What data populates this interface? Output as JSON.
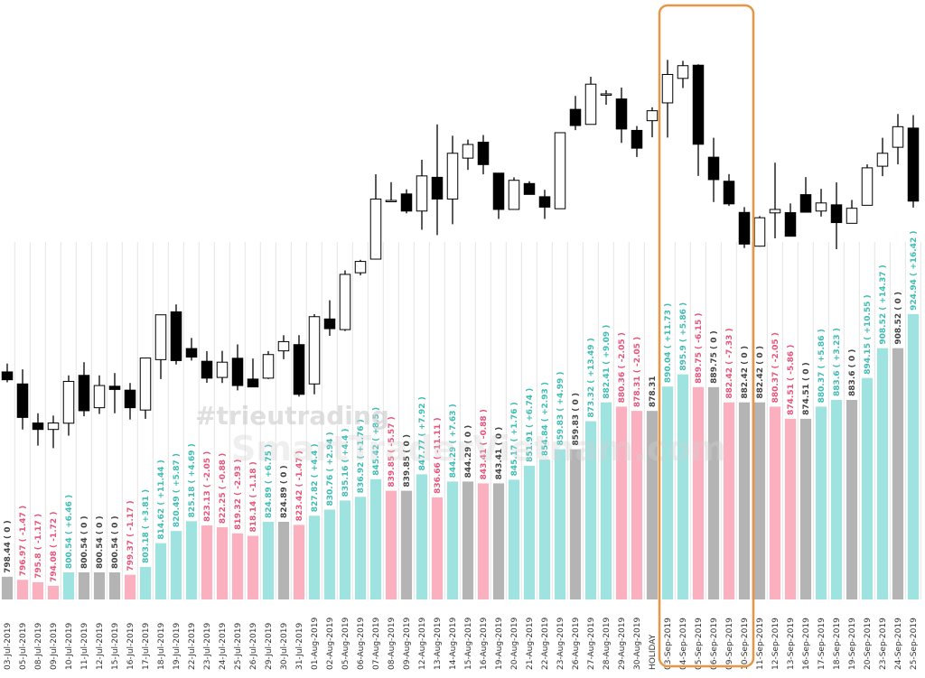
{
  "watermark": {
    "handle": "#trieutrading",
    "site": "SmartTraderVietnam.com"
  },
  "colors": {
    "up": "#9ee3e0",
    "down": "#fbb0c0",
    "flat": "#b4b4b4",
    "up_text": "#3fbdb4",
    "down_text": "#e8557a",
    "flat_text": "#444444",
    "highlight": "#e69645",
    "candle": "#000000"
  },
  "chart_data": [
    {
      "type": "bar",
      "title": "",
      "categories": [
        "03-Jul-2019",
        "05-Jul-2019",
        "08-Jul-2019",
        "09-Jul-2019",
        "10-Jul-2019",
        "11-Jul-2019",
        "12-Jul-2019",
        "15-Jul-2019",
        "16-Jul-2019",
        "17-Jul-2019",
        "18-Jul-2019",
        "19-Jul-2019",
        "22-Jul-2019",
        "23-Jul-2019",
        "24-Jul-2019",
        "25-Jul-2019",
        "26-Jul-2019",
        "29-Jul-2019",
        "30-Jul-2019",
        "31-Jul-2019",
        "01-Aug-2019",
        "02-Aug-2019",
        "05-Aug-2019",
        "06-Aug-2019",
        "07-Aug-2019",
        "08-Aug-2019",
        "09-Aug-2019",
        "12-Aug-2019",
        "13-Aug-2019",
        "14-Aug-2019",
        "15-Aug-2019",
        "16-Aug-2019",
        "19-Aug-2019",
        "20-Aug-2019",
        "21-Aug-2019",
        "22-Aug-2019",
        "23-Aug-2019",
        "26-Aug-2019",
        "27-Aug-2019",
        "28-Aug-2019",
        "29-Aug-2019",
        "30-Aug-2019",
        "HOLIDAY",
        "03-Sep-2019",
        "04-Sep-2019",
        "05-Sep-2019",
        "06-Sep-2019",
        "09-Sep-2019",
        "10-Sep-2019",
        "11-Sep-2019",
        "12-Sep-2019",
        "13-Sep-2019",
        "16-Sep-2019",
        "17-Sep-2019",
        "18-Sep-2019",
        "19-Sep-2019",
        "20-Sep-2019",
        "23-Sep-2019",
        "24-Sep-2019",
        "25-Sep-2019"
      ],
      "series": [
        {
          "values": [
            798.44,
            796.97,
            795.8,
            794.08,
            800.54,
            800.54,
            800.54,
            800.54,
            799.37,
            803.18,
            814.62,
            820.49,
            825.18,
            823.13,
            822.25,
            819.32,
            818.14,
            824.89,
            824.89,
            823.42,
            827.82,
            830.76,
            835.16,
            836.92,
            845.42,
            839.85,
            839.85,
            847.77,
            836.66,
            844.29,
            844.29,
            843.41,
            843.41,
            845.17,
            851.91,
            854.84,
            859.83,
            859.83,
            873.32,
            882.41,
            880.36,
            878.31,
            878.31,
            890.04,
            895.9,
            889.75,
            889.75,
            882.42,
            882.42,
            882.42,
            880.37,
            874.51,
            874.51,
            880.37,
            883.6,
            883.6,
            894.15,
            908.52,
            908.52,
            924.94
          ],
          "labels": [
            "798.44",
            "796.97",
            "795.8",
            "794.08",
            "800.54",
            "800.54",
            "800.54",
            "800.54",
            "799.37",
            "803.18",
            "814.62",
            "820.49",
            "825.18",
            "823.13",
            "822.25",
            "819.32",
            "818.14",
            "824.89",
            "824.89",
            "823.42",
            "827.82",
            "830.76",
            "835.16",
            "836.92",
            "845.42",
            "839.85",
            "839.85",
            "847.77",
            "836.66",
            "844.29",
            "844.29",
            "843.41",
            "843.41",
            "845.17",
            "851.91",
            "854.84",
            "859.83",
            "859.83",
            "873.32",
            "882.41",
            "880.36",
            "878.31",
            "878.31",
            "890.04",
            "895.9",
            "889.75",
            "889.75",
            "882.42",
            "882.42",
            "882.42",
            "880.37",
            "874.51",
            "874.51",
            "880.37",
            "883.6",
            "883.6",
            "894.15",
            "908.52",
            "908.52",
            "924.94"
          ],
          "changes": [
            "( 0 )",
            "( -1.47 )",
            "( -1.17 )",
            "( -1.72 )",
            "( +6.46 )",
            "( 0 )",
            "( 0 )",
            "( 0 )",
            "( -1.17 )",
            "( +3.81 )",
            "( +11.44 )",
            "( +5.87 )",
            "( +4.69 )",
            "( -2.05 )",
            "( -0.88 )",
            "( -2.93 )",
            "( -1.18 )",
            "( +6.75 )",
            "( 0 )",
            "( -1.47 )",
            "( +4.4 )",
            "( +2.94 )",
            "( +4.4 )",
            "( +1.76 )",
            "( +8.5 )",
            "( -5.57 )",
            "( 0 )",
            "( +7.92 )",
            "( -11.11 )",
            "( +7.63 )",
            "( 0 )",
            "( -0.88 )",
            "( 0 )",
            "( +1.76 )",
            "( +6.74 )",
            "( +2.93 )",
            "( +4.99 )",
            "( 0 )",
            "( +13.49 )",
            "( +9.09 )",
            "( -2.05 )",
            "( -2.05 )",
            "",
            "( +11.73 )",
            "( +5.86 )",
            "( -6.15 )",
            "( 0 )",
            "( -7.33 )",
            "( 0 )",
            "( 0 )",
            "( -2.05 )",
            "( -5.86 )",
            "( 0 )",
            "( +5.86 )",
            "( +3.23 )",
            "( 0 )",
            "( +10.55 )",
            "( +14.37 )",
            "( 0 )",
            "( +16.42 )"
          ]
        }
      ]
    },
    {
      "type": "candlestick",
      "categories_ref": "same as bar chart",
      "candles_top": [
        {
          "o": 806.1,
          "c": 802.7,
          "h": 809.7,
          "l": 801.6
        },
        {
          "o": 800.9,
          "c": 786.4,
          "h": 807.2,
          "l": 781.2
        },
        {
          "o": 784.0,
          "c": 781.2,
          "h": 788.2,
          "l": 774.2
        },
        {
          "o": 781.2,
          "c": 784.0,
          "h": 787.2,
          "l": 773.1
        },
        {
          "o": 783.9,
          "c": 802.0,
          "h": 804.6,
          "l": 778.5
        },
        {
          "o": 804.6,
          "c": 789.3,
          "h": 810.3,
          "l": 786.9
        },
        {
          "o": 790.6,
          "c": 800.2,
          "h": 804.6,
          "l": 787.9
        },
        {
          "o": 799.9,
          "c": 798.5,
          "h": 805.6,
          "l": 788.2
        },
        {
          "o": 798.2,
          "c": 790.6,
          "h": 801.3,
          "l": 785.5
        },
        {
          "o": 789.6,
          "c": 812.1,
          "h": 812.1,
          "l": 785.8
        },
        {
          "o": 811.4,
          "c": 830.8,
          "h": 830.8,
          "l": 803.0
        },
        {
          "o": 832.1,
          "c": 811.0,
          "h": 835.3,
          "l": 809.3
        },
        {
          "o": 816.2,
          "c": 812.5,
          "h": 820.8,
          "l": 811.0
        },
        {
          "o": 810.7,
          "c": 803.4,
          "h": 815.1,
          "l": 801.4
        },
        {
          "o": 803.7,
          "c": 810.3,
          "h": 815.2,
          "l": 801.3
        },
        {
          "o": 812.0,
          "c": 800.2,
          "h": 818.0,
          "l": 798.1
        },
        {
          "o": 803.0,
          "c": 799.6,
          "h": 811.9,
          "l": 799.6
        },
        {
          "o": 803.4,
          "c": 813.6,
          "h": 815.1,
          "l": 803.0
        },
        {
          "o": 815.2,
          "c": 819.2,
          "h": 822.0,
          "l": 811.6
        },
        {
          "o": 817.9,
          "c": 796.4,
          "h": 822.0,
          "l": 795.4
        },
        {
          "o": 800.9,
          "c": 830.0,
          "h": 831.1,
          "l": 796.4
        },
        {
          "o": 829.0,
          "c": 824.8,
          "h": 837.1,
          "l": 821.7
        },
        {
          "o": 824.4,
          "c": 848.3,
          "h": 850.0,
          "l": 823.8
        },
        {
          "o": 849.0,
          "c": 853.9,
          "h": 854.6,
          "l": 847.9
        },
        {
          "o": 854.9,
          "c": 880.9,
          "h": 891.6,
          "l": 854.9
        },
        {
          "o": 880.3,
          "c": 880.3,
          "h": 888.2,
          "l": 879.6
        },
        {
          "o": 883.1,
          "c": 875.7,
          "h": 885.1,
          "l": 874.7
        },
        {
          "o": 875.7,
          "c": 890.9,
          "h": 897.9,
          "l": 867.6
        },
        {
          "o": 890.3,
          "c": 880.9,
          "h": 913.2,
          "l": 865.3
        },
        {
          "o": 880.9,
          "c": 900.7,
          "h": 908.3,
          "l": 870.0
        },
        {
          "o": 898.6,
          "c": 904.5,
          "h": 906.6,
          "l": 893.5
        },
        {
          "o": 905.5,
          "c": 895.8,
          "h": 908.6,
          "l": 891.6
        },
        {
          "o": 892.1,
          "c": 876.4,
          "h": 892.1,
          "l": 872.3
        },
        {
          "o": 876.4,
          "c": 889.0,
          "h": 890.3,
          "l": 876.4
        },
        {
          "o": 887.6,
          "c": 882.9,
          "h": 888.6,
          "l": 882.9
        },
        {
          "o": 881.9,
          "c": 877.4,
          "h": 884.9,
          "l": 872.3
        },
        {
          "o": 876.7,
          "c": 909.6,
          "h": 909.6,
          "l": 876.7
        },
        {
          "o": 919.7,
          "c": 912.7,
          "h": 925.5,
          "l": 910.7
        },
        {
          "o": 913.2,
          "c": 930.6,
          "h": 933.8,
          "l": 913.2
        },
        {
          "o": 926.4,
          "c": 926.4,
          "h": 928.0,
          "l": 921.7
        },
        {
          "o": 924.2,
          "c": 911.2,
          "h": 929.1,
          "l": 905.2
        },
        {
          "o": 910.6,
          "c": 902.9,
          "h": 912.5,
          "l": 899.1
        },
        {
          "o": 914.8,
          "c": 919.1,
          "h": 920.6,
          "l": 907.6
        },
        {
          "o": 922.5,
          "c": 934.8,
          "h": 941.1,
          "l": 907.5
        },
        {
          "o": 933.1,
          "c": 938.6,
          "h": 940.7,
          "l": 928.9
        },
        {
          "o": 938.8,
          "c": 904.6,
          "h": 939.2,
          "l": 890.9
        },
        {
          "o": 899.0,
          "c": 889.3,
          "h": 907.4,
          "l": 879.6
        },
        {
          "o": 888.6,
          "c": 878.8,
          "h": 891.7,
          "l": 877.9
        },
        {
          "o": 875.1,
          "c": 861.4,
          "h": 877.4,
          "l": 859.7
        },
        {
          "o": 860.5,
          "c": 872.8,
          "h": 873.5,
          "l": 860.3
        },
        {
          "o": 874.9,
          "c": 876.4,
          "h": 896.6,
          "l": 863.9
        },
        {
          "o": 875.0,
          "c": 864.8,
          "h": 879.0,
          "l": 864.8
        },
        {
          "o": 882.8,
          "c": 875.2,
          "h": 890.4,
          "l": 875.2
        },
        {
          "o": 875.7,
          "c": 879.2,
          "h": 885.3,
          "l": 873.3
        },
        {
          "o": 878.4,
          "c": 870.7,
          "h": 888.1,
          "l": 859.2
        },
        {
          "o": 870.4,
          "c": 876.9,
          "h": 880.5,
          "l": 870.4
        },
        {
          "o": 878.2,
          "c": 894.4,
          "h": 895.9,
          "l": 878.2
        },
        {
          "o": 895.1,
          "c": 900.7,
          "h": 907.4,
          "l": 890.8
        },
        {
          "o": 903.3,
          "c": 912.2,
          "h": 917.7,
          "l": 895.9
        },
        {
          "o": 911.6,
          "c": 880.0,
          "h": 917.2,
          "l": 877.2
        }
      ]
    }
  ]
}
